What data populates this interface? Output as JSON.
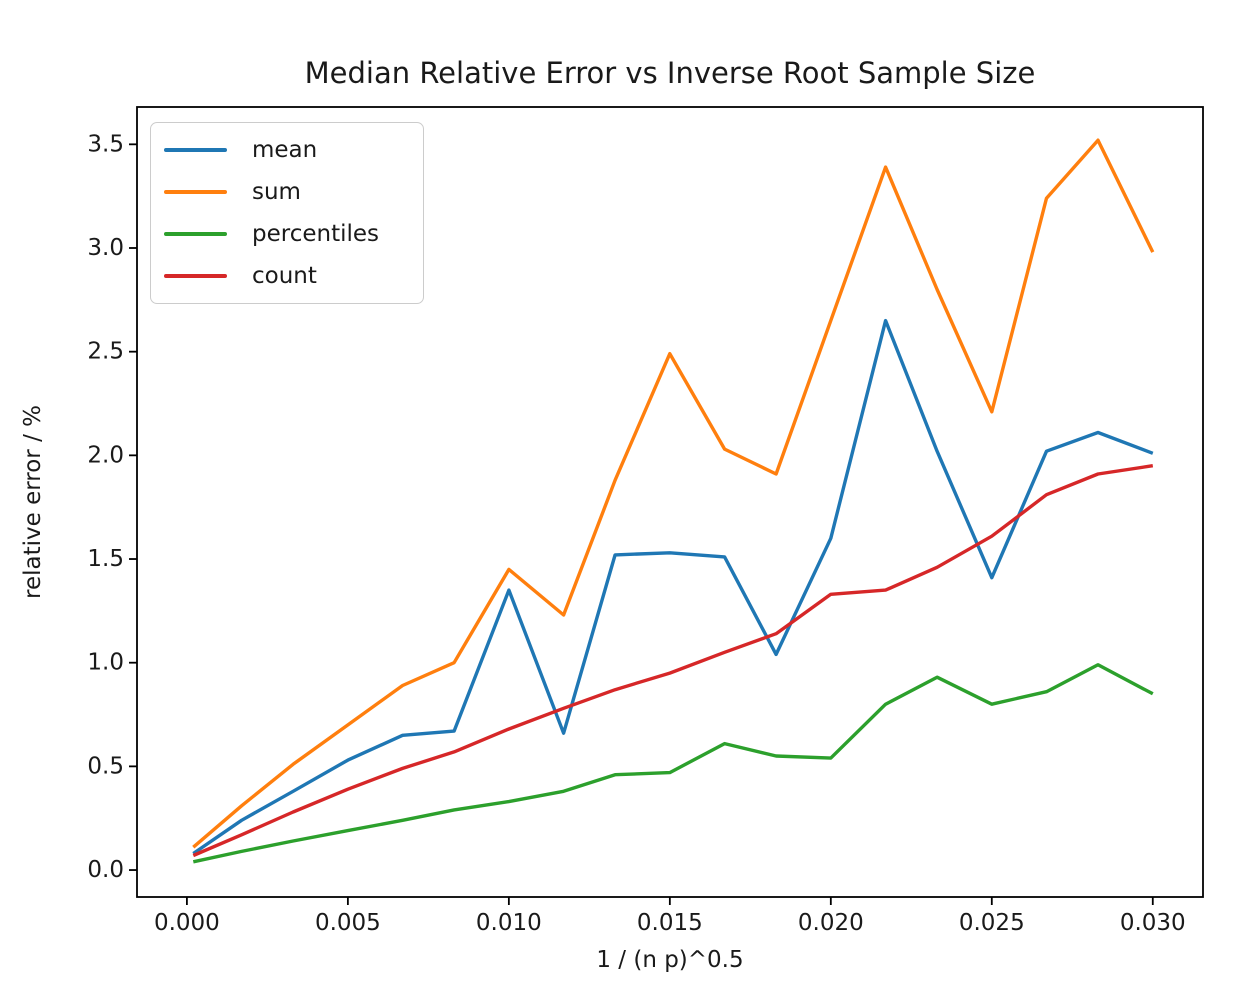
{
  "chart_data": {
    "type": "line",
    "title": "Median Relative Error vs Inverse Root Sample Size",
    "xlabel": "1 / (n p)^0.5",
    "ylabel": "relative error / %",
    "grid": false,
    "legend_position": "upper left",
    "xlim": [
      -0.00155,
      0.03156
    ],
    "ylim": [
      -0.13,
      3.68
    ],
    "x_ticks": {
      "values": [
        0.0,
        0.005,
        0.01,
        0.015,
        0.02,
        0.025,
        0.03
      ],
      "labels": [
        "0.000",
        "0.005",
        "0.010",
        "0.015",
        "0.020",
        "0.025",
        "0.030"
      ]
    },
    "y_ticks": {
      "values": [
        0.0,
        0.5,
        1.0,
        1.5,
        2.0,
        2.5,
        3.0,
        3.5
      ],
      "labels": [
        "0.0",
        "0.5",
        "1.0",
        "1.5",
        "2.0",
        "2.5",
        "3.0",
        "3.5"
      ]
    },
    "x": [
      0.0002,
      0.0017,
      0.0033,
      0.005,
      0.0067,
      0.0083,
      0.01,
      0.0117,
      0.0133,
      0.015,
      0.0167,
      0.0183,
      0.02,
      0.0217,
      0.0233,
      0.025,
      0.0267,
      0.0283,
      0.03
    ],
    "series": [
      {
        "name": "mean",
        "color": "#1f77b4",
        "values": [
          0.08,
          0.24,
          0.38,
          0.53,
          0.65,
          0.67,
          1.35,
          0.66,
          1.52,
          1.53,
          1.51,
          1.04,
          1.6,
          2.65,
          2.02,
          1.41,
          2.02,
          2.11,
          2.01
        ]
      },
      {
        "name": "sum",
        "color": "#ff7f0e",
        "values": [
          0.11,
          0.31,
          0.51,
          0.7,
          0.89,
          1.0,
          1.45,
          1.23,
          1.88,
          2.49,
          2.03,
          1.91,
          2.65,
          3.39,
          2.8,
          2.21,
          3.24,
          3.52,
          2.98
        ]
      },
      {
        "name": "percentiles",
        "color": "#2ca02c",
        "values": [
          0.04,
          0.09,
          0.14,
          0.19,
          0.24,
          0.29,
          0.33,
          0.38,
          0.46,
          0.47,
          0.61,
          0.55,
          0.54,
          0.8,
          0.93,
          0.8,
          0.86,
          0.99,
          0.85
        ]
      },
      {
        "name": "count",
        "color": "#d62728",
        "values": [
          0.07,
          0.17,
          0.28,
          0.39,
          0.49,
          0.57,
          0.68,
          0.78,
          0.87,
          0.95,
          1.05,
          1.14,
          1.33,
          1.35,
          1.46,
          1.61,
          1.81,
          1.91,
          1.95
        ]
      }
    ],
    "axis_color": "#000000",
    "text_color": "#1a1a1a"
  }
}
